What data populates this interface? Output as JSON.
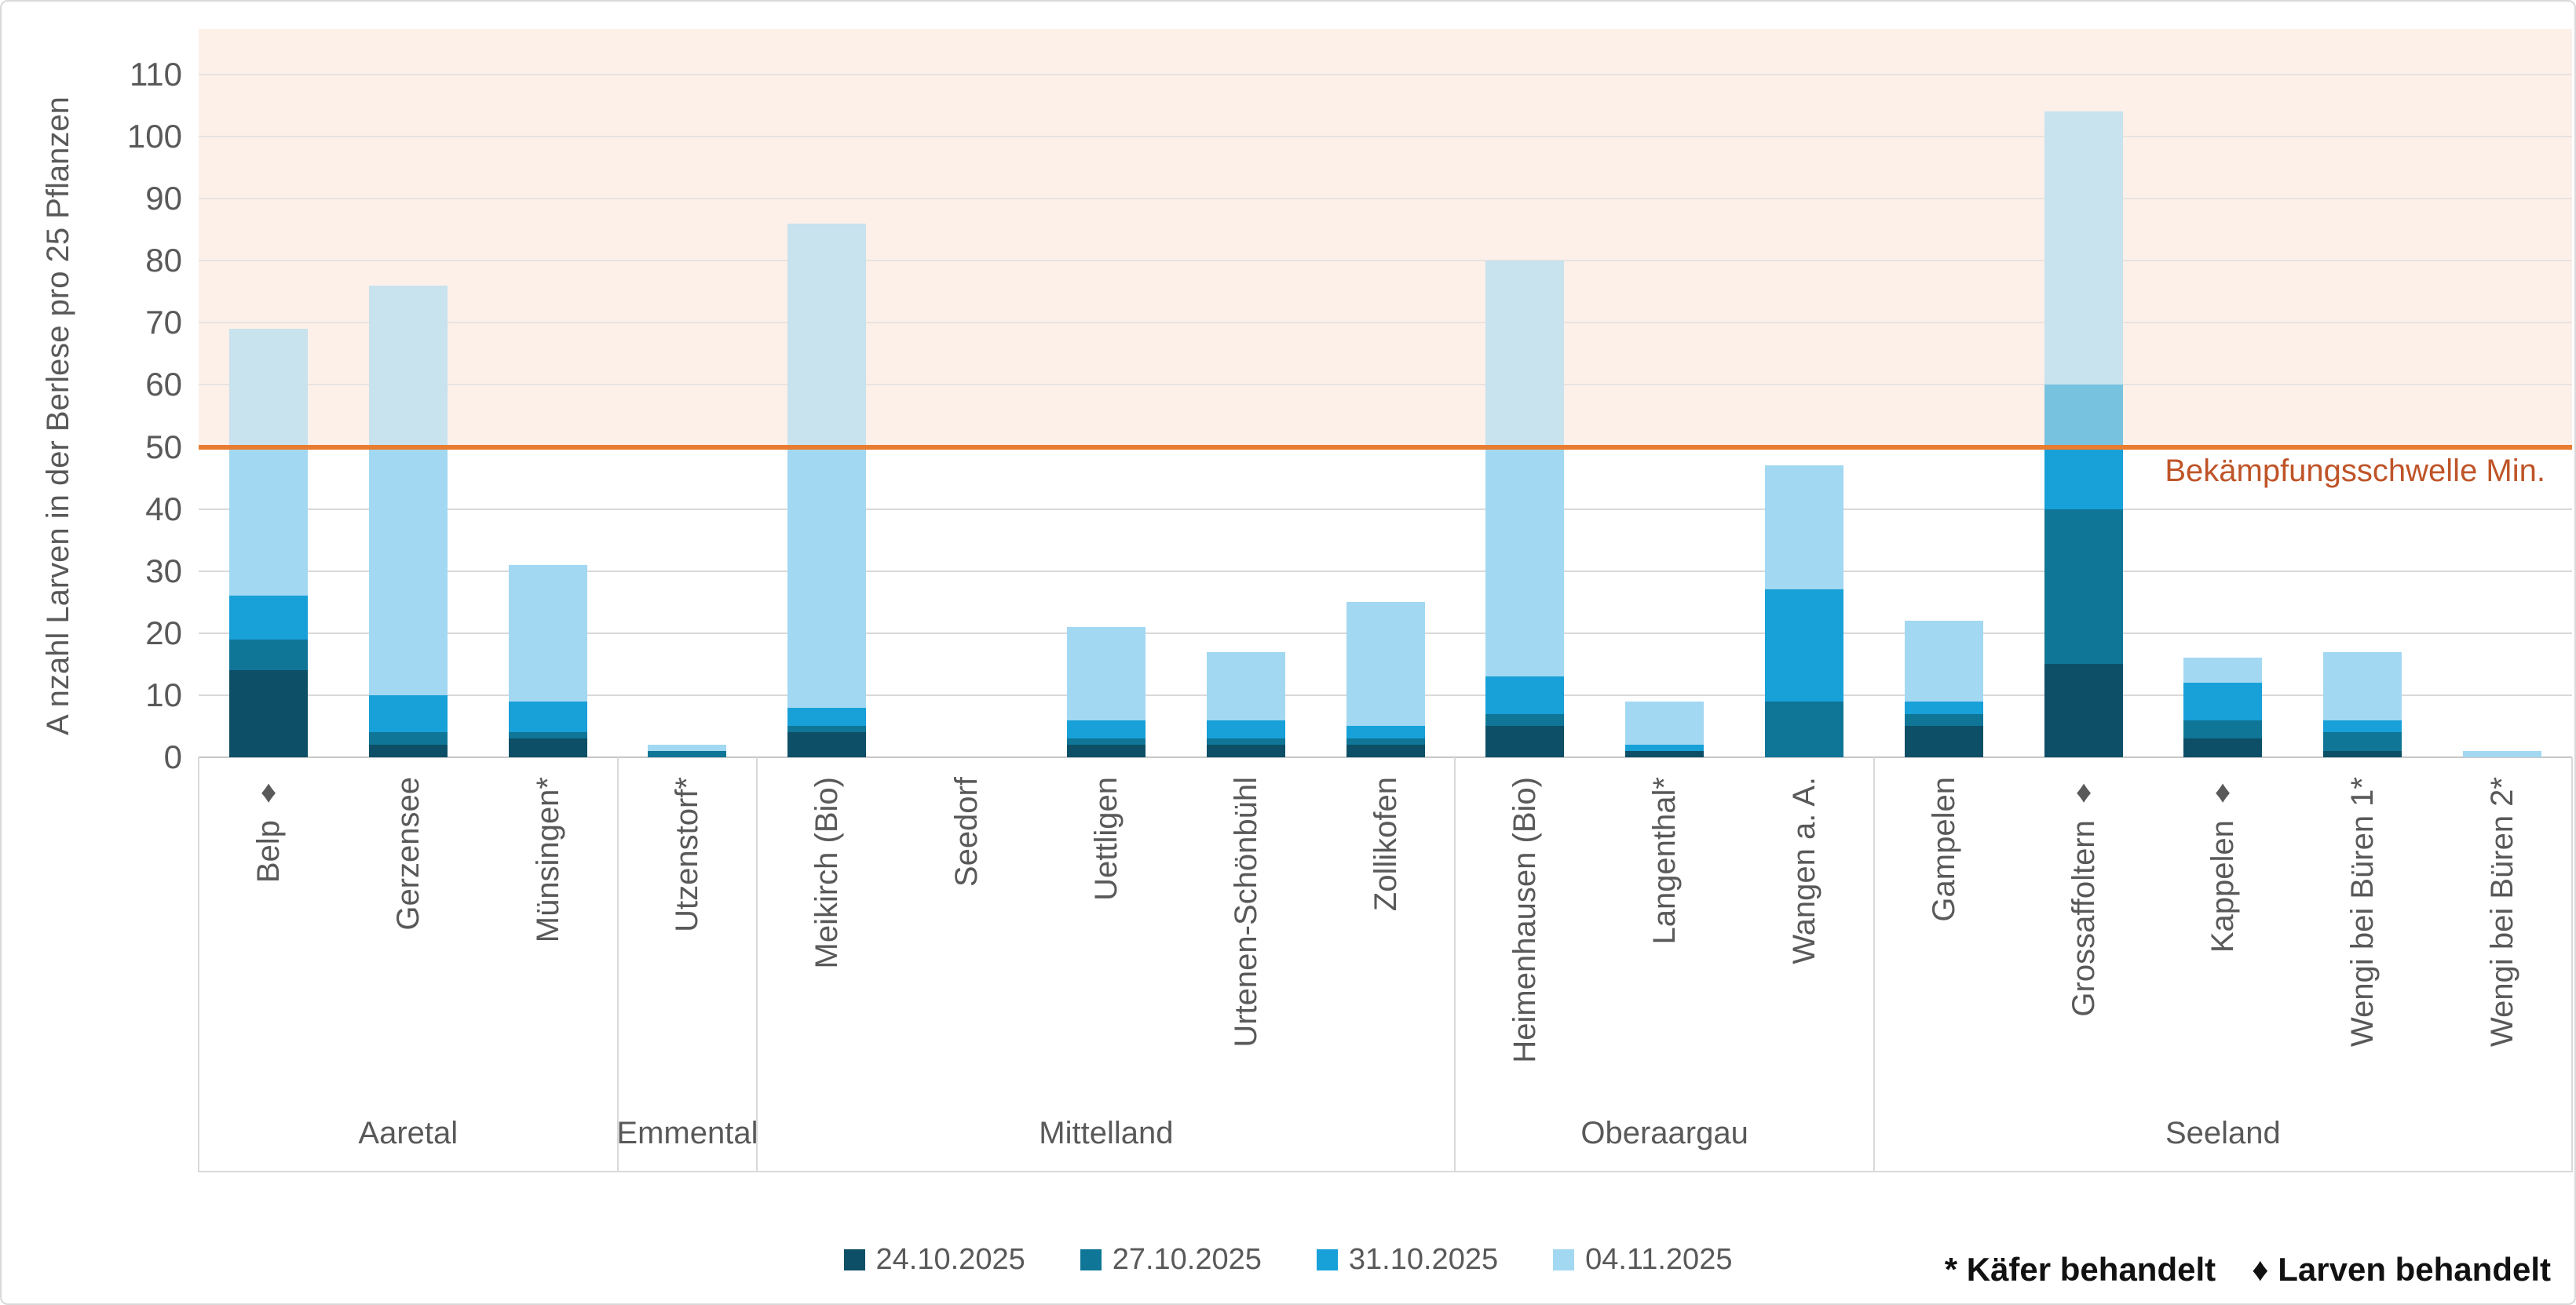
{
  "chart_data": {
    "type": "bar",
    "stacked": true,
    "ylabel": "A nzahl Larven in der Berlese pro 25 Pflanzen",
    "y_ticks": [
      0,
      10,
      20,
      30,
      40,
      50,
      60,
      70,
      80,
      90,
      100,
      110
    ],
    "ylim": [
      0,
      117
    ],
    "grid": true,
    "legend_position": "bottom-center",
    "groups": [
      {
        "label": "Aaretal",
        "sites": [
          "Belp ♦",
          "Gerzensee",
          "Münsingen*"
        ]
      },
      {
        "label": "Emmental",
        "sites": [
          "Utzenstorf*"
        ]
      },
      {
        "label": "Mittelland",
        "sites": [
          "Meikirch (Bio)",
          "Seedorf",
          "Uettligen",
          "Urtenen-Schönbühl",
          "Zollikofen"
        ]
      },
      {
        "label": "Oberaargau",
        "sites": [
          "Heimenhausen (Bio)",
          "Langenthal*",
          "Wangen a. A."
        ]
      },
      {
        "label": "Seeland",
        "sites": [
          "Gampelen",
          "Grossaffoltern ♦",
          "Kappelen ♦",
          "Wengi bei Büren 1*",
          "Wengi bei Büren 2*"
        ]
      }
    ],
    "series": [
      {
        "name": "24.10.2025",
        "color": "#0d4f66",
        "values": [
          14,
          2,
          3,
          0,
          4,
          0,
          2,
          2,
          2,
          5,
          1,
          0,
          5,
          15,
          3,
          1,
          0
        ]
      },
      {
        "name": "27.10.2025",
        "color": "#107697",
        "values": [
          5,
          2,
          1,
          1,
          1,
          0,
          1,
          1,
          1,
          2,
          0,
          9,
          2,
          25,
          3,
          3,
          0
        ]
      },
      {
        "name": "31.10.2025",
        "color": "#18a0d8",
        "values": [
          7,
          6,
          5,
          0,
          3,
          0,
          3,
          3,
          2,
          6,
          1,
          18,
          2,
          20,
          6,
          2,
          0
        ]
      },
      {
        "name": "04.11.2025",
        "color": "#a3d8f2",
        "values": [
          43,
          66,
          22,
          1,
          78,
          0,
          15,
          11,
          20,
          67,
          7,
          20,
          13,
          44,
          4,
          11,
          1
        ]
      }
    ],
    "totals": [
      69,
      76,
      31,
      2,
      86,
      0,
      21,
      17,
      25,
      80,
      9,
      47,
      22,
      104,
      16,
      17,
      1
    ],
    "threshold": {
      "value": 50,
      "label": "Bekämpfungsschwelle Min.",
      "line_color": "#e87c30",
      "label_color": "#bf5428",
      "zone_color": "#fcf0e9"
    },
    "footnotes": [
      "* Käfer behandelt",
      "♦ Larven behandelt"
    ]
  },
  "colors": {
    "gridline": "#d9d9d9",
    "axis_line": "#c7c7c7",
    "axis_text": "#595959",
    "footnote_text": "#111111"
  }
}
